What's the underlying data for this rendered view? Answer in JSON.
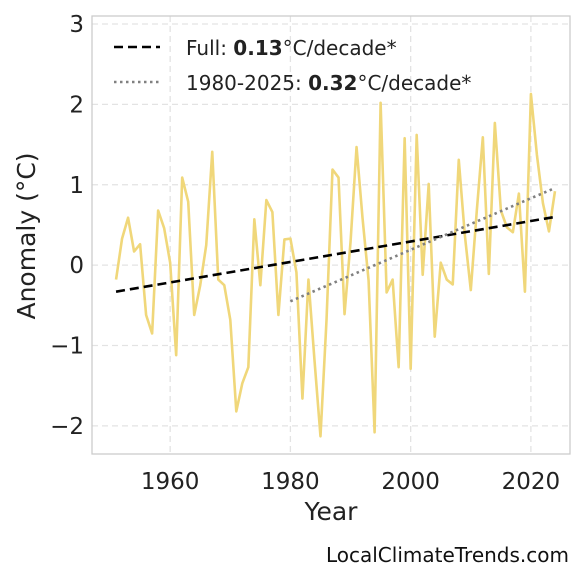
{
  "chart_data": {
    "type": "line",
    "xlabel": "Year",
    "ylabel": "Anomaly (°C)",
    "xlim": [
      1947,
      2026.5
    ],
    "ylim": [
      -2.35,
      3.1
    ],
    "xticks": [
      1960,
      1980,
      2000,
      2020
    ],
    "yticks": [
      -2,
      -1,
      0,
      1,
      2,
      3
    ],
    "ytick_labels": [
      "−2",
      "−1",
      "0",
      "1",
      "2",
      "3"
    ],
    "grid": true,
    "legend_position": "top-left",
    "series": [
      {
        "color": "#f0d77a",
        "x": [
          1951,
          1952,
          1953,
          1954,
          1955,
          1956,
          1957,
          1958,
          1959,
          1960,
          1961,
          1962,
          1963,
          1964,
          1965,
          1966,
          1967,
          1968,
          1969,
          1970,
          1971,
          1972,
          1973,
          1974,
          1975,
          1976,
          1977,
          1978,
          1979,
          1980,
          1981,
          1982,
          1983,
          1984,
          1985,
          1986,
          1987,
          1988,
          1989,
          1990,
          1991,
          1992,
          1993,
          1994,
          1995,
          1996,
          1997,
          1998,
          1999,
          2000,
          2001,
          2002,
          2003,
          2004,
          2005,
          2006,
          2007,
          2008,
          2009,
          2010,
          2011,
          2012,
          2013,
          2014,
          2015,
          2016,
          2017,
          2018,
          2019,
          2020,
          2021,
          2022,
          2023,
          2024
        ],
        "values": [
          -0.18,
          0.33,
          0.59,
          0.17,
          0.26,
          -0.62,
          -0.85,
          0.68,
          0.46,
          0.03,
          -1.12,
          1.09,
          0.79,
          -0.62,
          -0.25,
          0.25,
          1.41,
          -0.18,
          -0.25,
          -0.68,
          -1.82,
          -1.47,
          -1.27,
          0.57,
          -0.25,
          0.81,
          0.66,
          -0.62,
          0.32,
          0.33,
          -0.09,
          -1.66,
          -0.18,
          -1.18,
          -2.13,
          -0.69,
          1.19,
          1.09,
          -0.61,
          0.29,
          1.47,
          0.58,
          -0.19,
          -2.08,
          2.02,
          -0.34,
          -0.18,
          -1.27,
          1.58,
          -1.29,
          1.62,
          -0.12,
          1.01,
          -0.89,
          0.03,
          -0.18,
          -0.24,
          1.31,
          0.38,
          -0.31,
          0.68,
          1.59,
          -0.11,
          1.77,
          0.68,
          0.47,
          0.41,
          0.89,
          -0.33,
          2.13,
          1.37,
          0.77,
          0.42,
          0.92
        ]
      }
    ],
    "trends": [
      {
        "label_prefix": "Full: ",
        "label_rate": "0.13",
        "label_suffix": "°C/decade*",
        "style": "dashed",
        "color": "#000000",
        "x": [
          1951,
          2024
        ],
        "values": [
          -0.33,
          0.6
        ]
      },
      {
        "label_prefix": "1980-2025: ",
        "label_rate": "0.32",
        "label_suffix": "°C/decade*",
        "style": "dotted",
        "color": "#808080",
        "x": [
          1980,
          2024
        ],
        "values": [
          -0.45,
          0.96
        ]
      }
    ]
  },
  "credit": "LocalClimateTrends.com"
}
